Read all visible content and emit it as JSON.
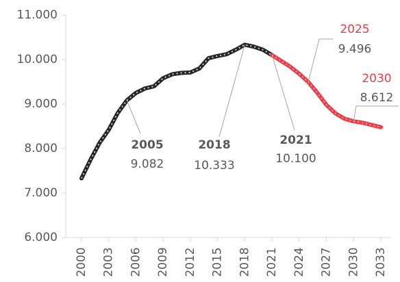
{
  "chart_data": {
    "type": "line",
    "x": [
      2000,
      2001,
      2002,
      2003,
      2004,
      2005,
      2006,
      2007,
      2008,
      2009,
      2010,
      2011,
      2012,
      2013,
      2014,
      2015,
      2016,
      2017,
      2018,
      2019,
      2020,
      2021,
      2022,
      2023,
      2024,
      2025,
      2026,
      2027,
      2028,
      2029,
      2030,
      2031,
      2032,
      2033
    ],
    "series": [
      {
        "color": "#262626",
        "values": [
          7330,
          7750,
          8130,
          8420,
          8800,
          9082,
          9250,
          9350,
          9400,
          9580,
          9670,
          9700,
          9710,
          9800,
          10030,
          10080,
          10120,
          10220,
          10333,
          10290,
          10220,
          10100,
          null,
          null,
          null,
          null,
          null,
          null,
          null,
          null,
          null,
          null,
          null,
          null
        ]
      },
      {
        "color": "#e8404a",
        "values": [
          null,
          null,
          null,
          null,
          null,
          null,
          null,
          null,
          null,
          null,
          null,
          null,
          null,
          null,
          null,
          null,
          null,
          null,
          null,
          null,
          null,
          10100,
          9970,
          9840,
          9680,
          9496,
          9250,
          8980,
          8790,
          8670,
          8612,
          8580,
          8530,
          8480
        ]
      }
    ],
    "xlim": [
      2000,
      2033
    ],
    "xticks": [
      2000,
      2003,
      2006,
      2009,
      2012,
      2015,
      2018,
      2021,
      2024,
      2027,
      2030,
      2033
    ],
    "ylim": [
      6000,
      11000
    ],
    "yticks": [
      {
        "value": 6000,
        "label": "6.000"
      },
      {
        "value": 7000,
        "label": "7.000"
      },
      {
        "value": 8000,
        "label": "8.000"
      },
      {
        "value": 9000,
        "label": "9.000"
      },
      {
        "value": 10000,
        "label": "10.000"
      },
      {
        "value": 11000,
        "label": "11.000"
      }
    ],
    "annotations": [
      {
        "label": "2005",
        "value_label": "9.082"
      },
      {
        "label": "2018",
        "value_label": "10.333"
      },
      {
        "label": "2021",
        "value_label": "10.100"
      },
      {
        "label": "2025",
        "value_label": "9.496"
      },
      {
        "label": "2030",
        "value_label": "8.612"
      }
    ]
  }
}
